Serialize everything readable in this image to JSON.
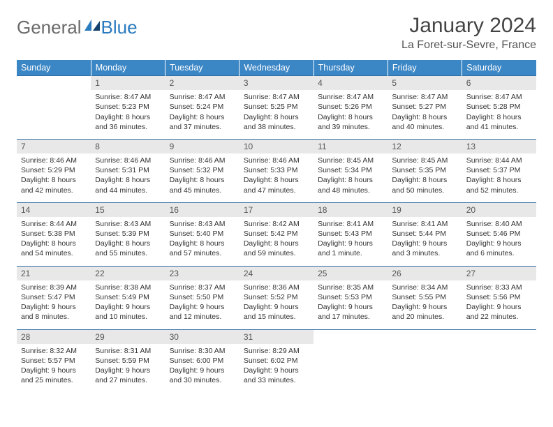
{
  "brand": {
    "part1": "General",
    "part2": "Blue"
  },
  "title": "January 2024",
  "location": "La Foret-sur-Sevre, France",
  "colors": {
    "header_bg": "#3b86c5",
    "header_text": "#ffffff",
    "daynum_bg": "#e8e8e8",
    "row_border": "#2e6da6",
    "brand_gray": "#6a6a6a",
    "brand_blue": "#2b7bbf"
  },
  "typography": {
    "title_fontsize": 30,
    "location_fontsize": 16,
    "header_fontsize": 12.5,
    "cell_fontsize": 10.5,
    "daynum_fontsize": 12
  },
  "days_header": [
    "Sunday",
    "Monday",
    "Tuesday",
    "Wednesday",
    "Thursday",
    "Friday",
    "Saturday"
  ],
  "weeks": [
    [
      null,
      {
        "n": "1",
        "sr": "8:47 AM",
        "ss": "5:23 PM",
        "dl": "8 hours and 36 minutes."
      },
      {
        "n": "2",
        "sr": "8:47 AM",
        "ss": "5:24 PM",
        "dl": "8 hours and 37 minutes."
      },
      {
        "n": "3",
        "sr": "8:47 AM",
        "ss": "5:25 PM",
        "dl": "8 hours and 38 minutes."
      },
      {
        "n": "4",
        "sr": "8:47 AM",
        "ss": "5:26 PM",
        "dl": "8 hours and 39 minutes."
      },
      {
        "n": "5",
        "sr": "8:47 AM",
        "ss": "5:27 PM",
        "dl": "8 hours and 40 minutes."
      },
      {
        "n": "6",
        "sr": "8:47 AM",
        "ss": "5:28 PM",
        "dl": "8 hours and 41 minutes."
      }
    ],
    [
      {
        "n": "7",
        "sr": "8:46 AM",
        "ss": "5:29 PM",
        "dl": "8 hours and 42 minutes."
      },
      {
        "n": "8",
        "sr": "8:46 AM",
        "ss": "5:31 PM",
        "dl": "8 hours and 44 minutes."
      },
      {
        "n": "9",
        "sr": "8:46 AM",
        "ss": "5:32 PM",
        "dl": "8 hours and 45 minutes."
      },
      {
        "n": "10",
        "sr": "8:46 AM",
        "ss": "5:33 PM",
        "dl": "8 hours and 47 minutes."
      },
      {
        "n": "11",
        "sr": "8:45 AM",
        "ss": "5:34 PM",
        "dl": "8 hours and 48 minutes."
      },
      {
        "n": "12",
        "sr": "8:45 AM",
        "ss": "5:35 PM",
        "dl": "8 hours and 50 minutes."
      },
      {
        "n": "13",
        "sr": "8:44 AM",
        "ss": "5:37 PM",
        "dl": "8 hours and 52 minutes."
      }
    ],
    [
      {
        "n": "14",
        "sr": "8:44 AM",
        "ss": "5:38 PM",
        "dl": "8 hours and 54 minutes."
      },
      {
        "n": "15",
        "sr": "8:43 AM",
        "ss": "5:39 PM",
        "dl": "8 hours and 55 minutes."
      },
      {
        "n": "16",
        "sr": "8:43 AM",
        "ss": "5:40 PM",
        "dl": "8 hours and 57 minutes."
      },
      {
        "n": "17",
        "sr": "8:42 AM",
        "ss": "5:42 PM",
        "dl": "8 hours and 59 minutes."
      },
      {
        "n": "18",
        "sr": "8:41 AM",
        "ss": "5:43 PM",
        "dl": "9 hours and 1 minute."
      },
      {
        "n": "19",
        "sr": "8:41 AM",
        "ss": "5:44 PM",
        "dl": "9 hours and 3 minutes."
      },
      {
        "n": "20",
        "sr": "8:40 AM",
        "ss": "5:46 PM",
        "dl": "9 hours and 6 minutes."
      }
    ],
    [
      {
        "n": "21",
        "sr": "8:39 AM",
        "ss": "5:47 PM",
        "dl": "9 hours and 8 minutes."
      },
      {
        "n": "22",
        "sr": "8:38 AM",
        "ss": "5:49 PM",
        "dl": "9 hours and 10 minutes."
      },
      {
        "n": "23",
        "sr": "8:37 AM",
        "ss": "5:50 PM",
        "dl": "9 hours and 12 minutes."
      },
      {
        "n": "24",
        "sr": "8:36 AM",
        "ss": "5:52 PM",
        "dl": "9 hours and 15 minutes."
      },
      {
        "n": "25",
        "sr": "8:35 AM",
        "ss": "5:53 PM",
        "dl": "9 hours and 17 minutes."
      },
      {
        "n": "26",
        "sr": "8:34 AM",
        "ss": "5:55 PM",
        "dl": "9 hours and 20 minutes."
      },
      {
        "n": "27",
        "sr": "8:33 AM",
        "ss": "5:56 PM",
        "dl": "9 hours and 22 minutes."
      }
    ],
    [
      {
        "n": "28",
        "sr": "8:32 AM",
        "ss": "5:57 PM",
        "dl": "9 hours and 25 minutes."
      },
      {
        "n": "29",
        "sr": "8:31 AM",
        "ss": "5:59 PM",
        "dl": "9 hours and 27 minutes."
      },
      {
        "n": "30",
        "sr": "8:30 AM",
        "ss": "6:00 PM",
        "dl": "9 hours and 30 minutes."
      },
      {
        "n": "31",
        "sr": "8:29 AM",
        "ss": "6:02 PM",
        "dl": "9 hours and 33 minutes."
      },
      null,
      null,
      null
    ]
  ],
  "labels": {
    "sunrise": "Sunrise:",
    "sunset": "Sunset:",
    "daylight": "Daylight:"
  }
}
